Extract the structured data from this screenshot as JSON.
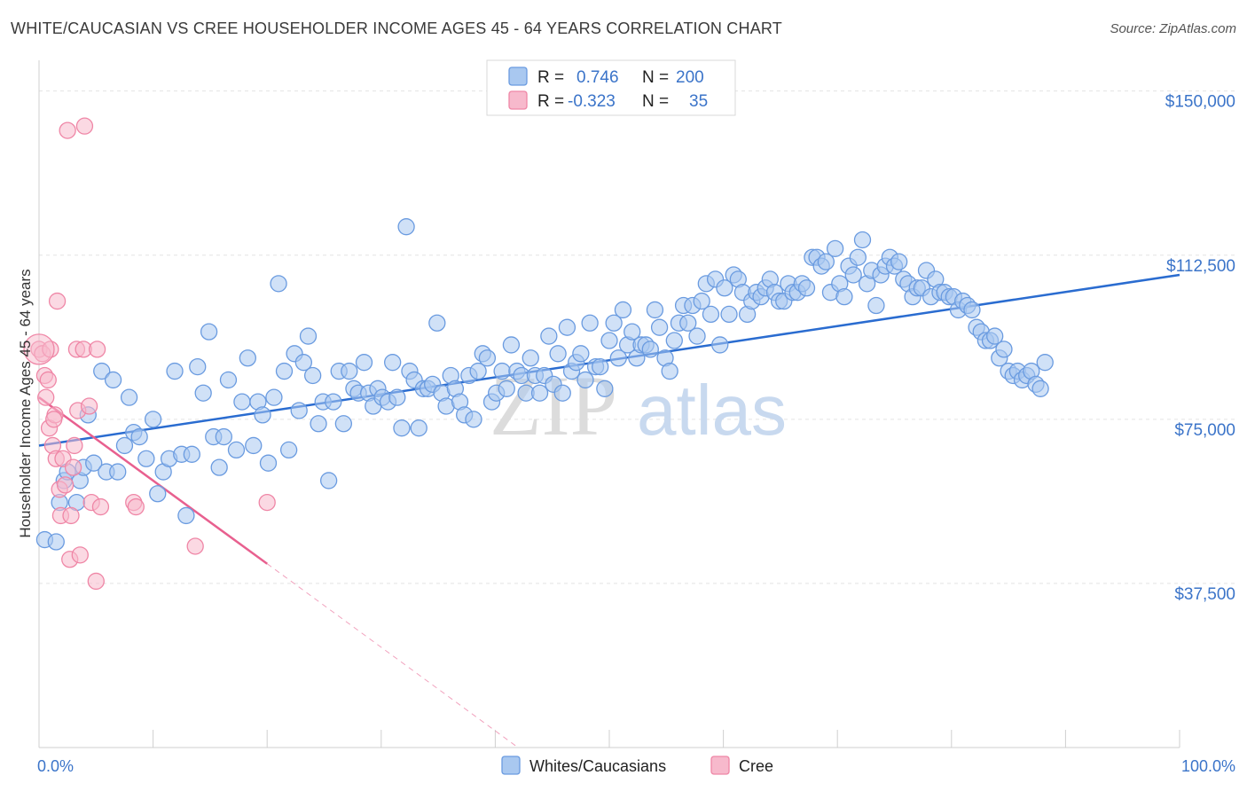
{
  "header": {
    "title": "WHITE/CAUCASIAN VS CREE HOUSEHOLDER INCOME AGES 45 - 64 YEARS CORRELATION CHART",
    "source": "Source: ZipAtlas.com"
  },
  "watermark": {
    "zip": "ZIP",
    "atlas": "atlas"
  },
  "colors": {
    "white_fill": "#a9c8f0",
    "white_stroke": "#6a9be0",
    "white_line": "#2a6cd0",
    "cree_fill": "#f7b9cc",
    "cree_stroke": "#ef86a6",
    "cree_line": "#e8608f",
    "tick_text": "#3b74c9",
    "grid": "#e3e3e3"
  },
  "legend": {
    "rows": [
      {
        "r_label": "R =",
        "r_value": "0.746",
        "n_label": "N =",
        "n_value": "200"
      },
      {
        "r_label": "R =",
        "r_value": "-0.323",
        "n_label": "N =",
        "n_value": "35"
      }
    ]
  },
  "chart_data": {
    "type": "scatter",
    "title": "WHITE/CAUCASIAN VS CREE HOUSEHOLDER INCOME AGES 45 - 64 YEARS CORRELATION CHART",
    "xlabel": "",
    "ylabel": "Householder Income Ages 45 - 64 years",
    "xlim": [
      0,
      100
    ],
    "ylim": [
      0,
      155000
    ],
    "x_tick_labels": [
      "0.0%",
      "100.0%"
    ],
    "y_ticks": [
      37500,
      75000,
      112500,
      150000
    ],
    "y_tick_labels": [
      "$37,500",
      "$75,000",
      "$112,500",
      "$150,000"
    ],
    "grid": true,
    "legend_position": "top-center",
    "series": [
      {
        "name": "Whites/Caucasians",
        "r": 0.746,
        "n": 200,
        "trend": {
          "x": [
            0,
            100
          ],
          "y": [
            69000,
            108000
          ]
        },
        "points": [
          [
            0.5,
            47500
          ],
          [
            1.5,
            47000
          ],
          [
            1.8,
            56000
          ],
          [
            2.2,
            61000
          ],
          [
            2.5,
            63000
          ],
          [
            3.3,
            56000
          ],
          [
            3.6,
            61000
          ],
          [
            3.9,
            64000
          ],
          [
            4.3,
            76000
          ],
          [
            4.8,
            65000
          ],
          [
            5.5,
            86000
          ],
          [
            5.9,
            63000
          ],
          [
            6.5,
            84000
          ],
          [
            6.9,
            63000
          ],
          [
            7.5,
            69000
          ],
          [
            7.9,
            80000
          ],
          [
            8.3,
            72000
          ],
          [
            8.8,
            71000
          ],
          [
            9.4,
            66000
          ],
          [
            10.0,
            75000
          ],
          [
            10.4,
            58000
          ],
          [
            10.9,
            63000
          ],
          [
            11.4,
            66000
          ],
          [
            11.9,
            86000
          ],
          [
            12.5,
            67000
          ],
          [
            12.9,
            53000
          ],
          [
            13.4,
            67000
          ],
          [
            13.9,
            87000
          ],
          [
            14.4,
            81000
          ],
          [
            14.9,
            95000
          ],
          [
            15.3,
            71000
          ],
          [
            15.8,
            64000
          ],
          [
            16.2,
            71000
          ],
          [
            16.6,
            84000
          ],
          [
            17.3,
            68000
          ],
          [
            17.8,
            79000
          ],
          [
            18.3,
            89000
          ],
          [
            18.8,
            69000
          ],
          [
            19.2,
            79000
          ],
          [
            19.6,
            76000
          ],
          [
            20.1,
            65000
          ],
          [
            20.6,
            80000
          ],
          [
            21.0,
            106000
          ],
          [
            21.5,
            86000
          ],
          [
            21.9,
            68000
          ],
          [
            22.4,
            90000
          ],
          [
            22.8,
            77000
          ],
          [
            23.2,
            88000
          ],
          [
            23.6,
            94000
          ],
          [
            24.0,
            85000
          ],
          [
            24.5,
            74000
          ],
          [
            24.9,
            79000
          ],
          [
            25.4,
            61000
          ],
          [
            25.8,
            79000
          ],
          [
            26.3,
            86000
          ],
          [
            26.7,
            74000
          ],
          [
            27.2,
            86000
          ],
          [
            27.6,
            82000
          ],
          [
            28.0,
            81000
          ],
          [
            28.5,
            88000
          ],
          [
            28.9,
            81000
          ],
          [
            29.3,
            78000
          ],
          [
            29.7,
            82000
          ],
          [
            30.1,
            80000
          ],
          [
            30.6,
            79000
          ],
          [
            31.0,
            88000
          ],
          [
            31.4,
            80000
          ],
          [
            31.8,
            73000
          ],
          [
            32.2,
            119000
          ],
          [
            32.5,
            86000
          ],
          [
            32.9,
            84000
          ],
          [
            33.3,
            73000
          ],
          [
            33.7,
            82000
          ],
          [
            34.1,
            82000
          ],
          [
            34.5,
            83000
          ],
          [
            34.9,
            97000
          ],
          [
            35.3,
            81000
          ],
          [
            35.7,
            78000
          ],
          [
            36.1,
            85000
          ],
          [
            36.5,
            82000
          ],
          [
            36.9,
            79000
          ],
          [
            37.3,
            76000
          ],
          [
            37.7,
            85000
          ],
          [
            38.1,
            75000
          ],
          [
            38.5,
            86000
          ],
          [
            38.9,
            90000
          ],
          [
            39.3,
            89000
          ],
          [
            39.7,
            79000
          ],
          [
            40.1,
            81000
          ],
          [
            40.6,
            86000
          ],
          [
            41.0,
            82000
          ],
          [
            41.4,
            92000
          ],
          [
            41.9,
            86000
          ],
          [
            42.3,
            85000
          ],
          [
            42.7,
            81000
          ],
          [
            43.1,
            89000
          ],
          [
            43.5,
            85000
          ],
          [
            43.9,
            81000
          ],
          [
            44.3,
            85000
          ],
          [
            44.7,
            94000
          ],
          [
            45.1,
            83000
          ],
          [
            45.5,
            90000
          ],
          [
            45.9,
            81000
          ],
          [
            46.3,
            96000
          ],
          [
            46.7,
            86000
          ],
          [
            47.1,
            88000
          ],
          [
            47.5,
            90000
          ],
          [
            47.9,
            84000
          ],
          [
            48.3,
            97000
          ],
          [
            48.8,
            87000
          ],
          [
            49.2,
            87000
          ],
          [
            49.6,
            82000
          ],
          [
            50.0,
            93000
          ],
          [
            50.4,
            97000
          ],
          [
            50.8,
            89000
          ],
          [
            51.2,
            100000
          ],
          [
            51.6,
            92000
          ],
          [
            52.0,
            95000
          ],
          [
            52.4,
            89000
          ],
          [
            52.8,
            92000
          ],
          [
            53.2,
            92000
          ],
          [
            53.6,
            91000
          ],
          [
            54.0,
            100000
          ],
          [
            54.4,
            96000
          ],
          [
            54.9,
            89000
          ],
          [
            55.3,
            86000
          ],
          [
            55.7,
            93000
          ],
          [
            56.1,
            97000
          ],
          [
            56.5,
            101000
          ],
          [
            56.9,
            97000
          ],
          [
            57.3,
            101000
          ],
          [
            57.7,
            94000
          ],
          [
            58.1,
            102000
          ],
          [
            58.5,
            106000
          ],
          [
            58.9,
            99000
          ],
          [
            59.3,
            107000
          ],
          [
            59.7,
            92000
          ],
          [
            60.1,
            105000
          ],
          [
            60.5,
            99000
          ],
          [
            60.9,
            108000
          ],
          [
            61.3,
            107000
          ],
          [
            61.7,
            104000
          ],
          [
            62.1,
            99000
          ],
          [
            62.5,
            102000
          ],
          [
            62.9,
            104000
          ],
          [
            63.3,
            103000
          ],
          [
            63.7,
            105000
          ],
          [
            64.1,
            107000
          ],
          [
            64.5,
            104000
          ],
          [
            64.9,
            102000
          ],
          [
            65.3,
            102000
          ],
          [
            65.7,
            106000
          ],
          [
            66.1,
            104000
          ],
          [
            66.5,
            104000
          ],
          [
            66.9,
            106000
          ],
          [
            67.3,
            105000
          ],
          [
            67.8,
            112000
          ],
          [
            68.2,
            112000
          ],
          [
            68.6,
            110000
          ],
          [
            69.0,
            111000
          ],
          [
            69.4,
            104000
          ],
          [
            69.8,
            114000
          ],
          [
            70.2,
            106000
          ],
          [
            70.6,
            103000
          ],
          [
            71.0,
            110000
          ],
          [
            71.4,
            108000
          ],
          [
            71.8,
            112000
          ],
          [
            72.2,
            116000
          ],
          [
            72.6,
            106000
          ],
          [
            73.0,
            109000
          ],
          [
            73.4,
            101000
          ],
          [
            73.8,
            108000
          ],
          [
            74.2,
            110000
          ],
          [
            74.6,
            112000
          ],
          [
            75.0,
            110000
          ],
          [
            75.4,
            111000
          ],
          [
            75.8,
            107000
          ],
          [
            76.2,
            106000
          ],
          [
            76.6,
            103000
          ],
          [
            77.0,
            105000
          ],
          [
            77.4,
            105000
          ],
          [
            77.8,
            109000
          ],
          [
            78.2,
            103000
          ],
          [
            78.6,
            107000
          ],
          [
            79.0,
            104000
          ],
          [
            79.4,
            104000
          ],
          [
            79.8,
            103000
          ],
          [
            80.2,
            103000
          ],
          [
            80.6,
            100000
          ],
          [
            81.0,
            102000
          ],
          [
            81.4,
            101000
          ],
          [
            81.8,
            100000
          ],
          [
            82.2,
            96000
          ],
          [
            82.6,
            95000
          ],
          [
            83.0,
            93000
          ],
          [
            83.4,
            93000
          ],
          [
            83.8,
            94000
          ],
          [
            84.2,
            89000
          ],
          [
            84.6,
            91000
          ],
          [
            85.0,
            86000
          ],
          [
            85.4,
            85000
          ],
          [
            85.8,
            86000
          ],
          [
            86.2,
            84000
          ],
          [
            86.6,
            85000
          ],
          [
            87.0,
            86000
          ],
          [
            87.4,
            83000
          ],
          [
            87.8,
            82000
          ],
          [
            88.2,
            88000
          ]
        ]
      },
      {
        "name": "Cree",
        "r": -0.323,
        "n": 35,
        "trend": {
          "x": [
            0,
            20
          ],
          "y": [
            80000,
            42000
          ],
          "dashed_extension": {
            "x": [
              20,
              42
            ],
            "y": [
              42000,
              0
            ]
          }
        },
        "points": [
          [
            0,
            91000
          ],
          [
            0.3,
            90000
          ],
          [
            0.5,
            85000
          ],
          [
            0.6,
            80000
          ],
          [
            0.9,
            73000
          ],
          [
            1.0,
            91000
          ],
          [
            1.2,
            69000
          ],
          [
            1.4,
            76000
          ],
          [
            1.5,
            66000
          ],
          [
            1.6,
            102000
          ],
          [
            1.8,
            59000
          ],
          [
            1.9,
            53000
          ],
          [
            2.1,
            66000
          ],
          [
            2.3,
            60000
          ],
          [
            2.5,
            141000
          ],
          [
            2.7,
            43000
          ],
          [
            2.8,
            53000
          ],
          [
            3.0,
            64000
          ],
          [
            3.1,
            69000
          ],
          [
            3.3,
            91000
          ],
          [
            3.4,
            77000
          ],
          [
            3.6,
            44000
          ],
          [
            3.9,
            91000
          ],
          [
            4.0,
            142000
          ],
          [
            4.4,
            78000
          ],
          [
            4.6,
            56000
          ],
          [
            5.0,
            38000
          ],
          [
            5.1,
            91000
          ],
          [
            5.4,
            55000
          ],
          [
            8.3,
            56000
          ],
          [
            8.5,
            55000
          ],
          [
            13.7,
            46000
          ],
          [
            20.0,
            56000
          ],
          [
            1.3,
            75000
          ],
          [
            0.8,
            84000
          ]
        ]
      }
    ]
  }
}
